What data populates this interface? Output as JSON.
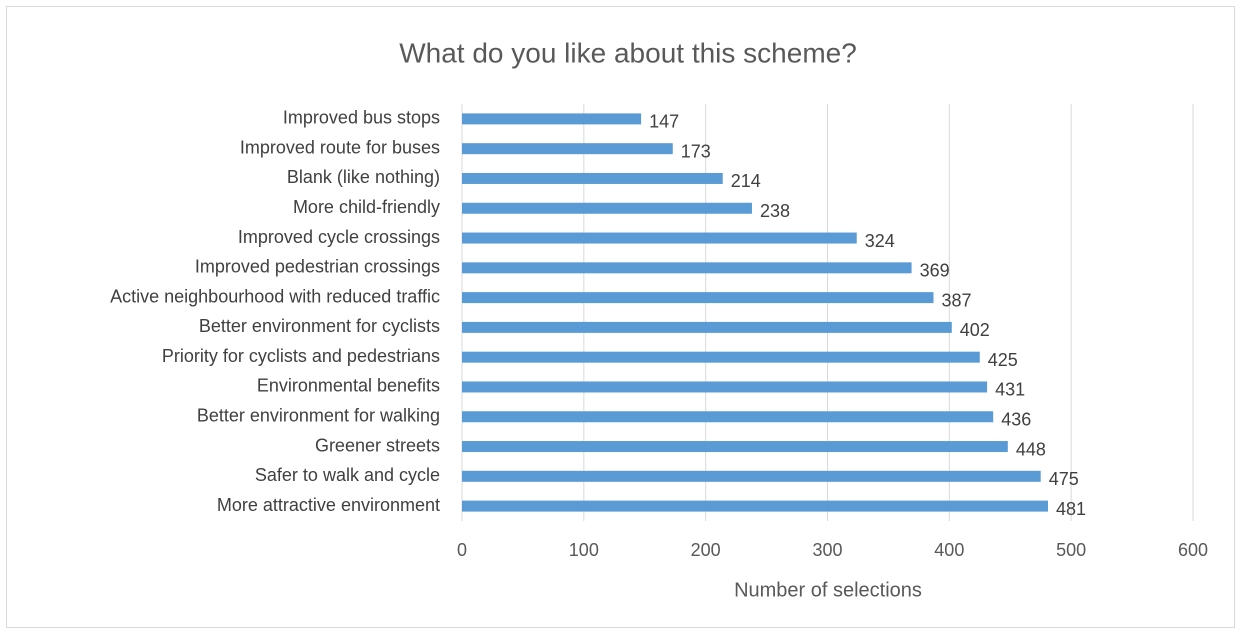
{
  "chart_data": {
    "type": "barh",
    "title": "What do you like about this scheme?",
    "x_label": "Number of selections",
    "categories": [
      "Improved bus stops",
      "Improved route for buses",
      "Blank (like nothing)",
      "More child-friendly",
      "Improved cycle crossings",
      "Improved pedestrian crossings",
      "Active neighbourhood with reduced traffic",
      "Better environment for cyclists",
      "Priority for cyclists and pedestrians",
      "Environmental benefits",
      "Better environment for walking",
      "Greener streets",
      "Safer to walk and cycle",
      "More attractive environment"
    ],
    "values": [
      147,
      173,
      214,
      238,
      324,
      369,
      387,
      402,
      425,
      431,
      436,
      448,
      475,
      481
    ],
    "color": "#5b9bd5",
    "xlim": [
      0,
      600
    ],
    "xticks": [
      0,
      100,
      200,
      300,
      400,
      500,
      600
    ],
    "grid": true
  }
}
